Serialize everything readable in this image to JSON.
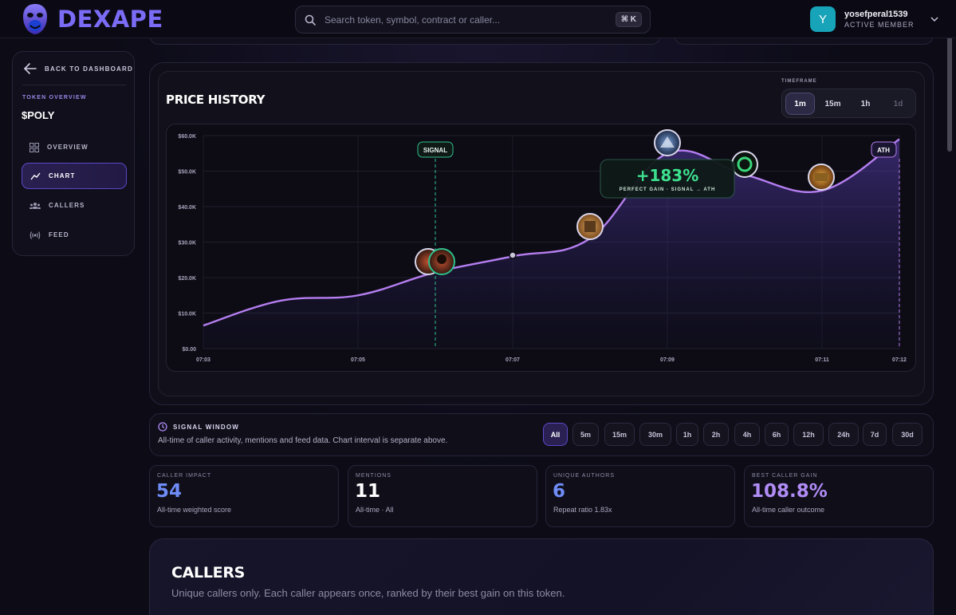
{
  "header": {
    "brand": "DEXAPE",
    "search_placeholder": "Search token, symbol, contract or caller...",
    "shortcut": "⌘ K",
    "user": {
      "initial": "Y",
      "name": "yosefperal1539",
      "role": "ACTIVE MEMBER"
    }
  },
  "sidebar": {
    "back_label": "BACK TO DASHBOARD",
    "section_label": "TOKEN OVERVIEW",
    "token": "$POLY",
    "items": [
      {
        "label": "OVERVIEW",
        "icon": "grid-icon",
        "active": false
      },
      {
        "label": "CHART",
        "icon": "trend-icon",
        "active": true
      },
      {
        "label": "CALLERS",
        "icon": "users-icon",
        "active": false
      },
      {
        "label": "FEED",
        "icon": "broadcast-icon",
        "active": false
      }
    ]
  },
  "chart_panel": {
    "title": "PRICE HISTORY",
    "timeframe_label": "TIMEFRAME",
    "timeframes": [
      {
        "label": "1m",
        "active": true,
        "enabled": true
      },
      {
        "label": "15m",
        "active": false,
        "enabled": true
      },
      {
        "label": "1h",
        "active": false,
        "enabled": true
      },
      {
        "label": "1d",
        "active": false,
        "enabled": false
      }
    ]
  },
  "chart_data": {
    "type": "line",
    "x": [
      "07:03",
      "07:04",
      "07:05",
      "07:06",
      "07:07",
      "07:08",
      "07:09",
      "07:10",
      "07:11",
      "07:12"
    ],
    "xticks": [
      "07:03",
      "07:05",
      "07:07",
      "07:09",
      "07:11",
      "07:12"
    ],
    "yticks": [
      "$0.00",
      "$10.0K",
      "$20.0K",
      "$30.0K",
      "$40.0K",
      "$50.0K",
      "$60.0K"
    ],
    "ylim": [
      0,
      60000
    ],
    "series": [
      {
        "values": [
          6500,
          13500,
          15000,
          21500,
          26000,
          31000,
          55000,
          49000,
          44500,
          59000
        ]
      }
    ],
    "color": "#b57ef0",
    "annotations": {
      "signal_label": "SIGNAL",
      "ath_label": "ATH",
      "gain_value": "+183%",
      "gain_caption": "PERFECT GAIN · SIGNAL → ATH"
    }
  },
  "signal_window": {
    "title": "SIGNAL WINDOW",
    "description": "All-time of caller activity, mentions and feed data. Chart interval is separate above.",
    "options": [
      {
        "label": "All",
        "active": true
      },
      {
        "label": "5m",
        "active": false
      },
      {
        "label": "15m",
        "active": false
      },
      {
        "label": "30m",
        "active": false
      },
      {
        "label": "1h",
        "active": false
      },
      {
        "label": "2h",
        "active": false
      },
      {
        "label": "4h",
        "active": false
      },
      {
        "label": "6h",
        "active": false
      },
      {
        "label": "12h",
        "active": false
      },
      {
        "label": "24h",
        "active": false
      },
      {
        "label": "7d",
        "active": false
      },
      {
        "label": "30d",
        "active": false
      }
    ]
  },
  "stats": [
    {
      "label": "CALLER IMPACT",
      "value": "54",
      "sub": "All-time weighted score",
      "color": "#6f8cf7"
    },
    {
      "label": "MENTIONS",
      "value": "11",
      "sub": "All-time · All",
      "color": "#ffffff"
    },
    {
      "label": "UNIQUE AUTHORS",
      "value": "6",
      "sub": "Repeat ratio 1.83x",
      "color": "#6f8cf7"
    },
    {
      "label": "BEST CALLER GAIN",
      "value": "108.8%",
      "sub": "All-time caller outcome",
      "color": "#b08cf5"
    }
  ],
  "callers": {
    "title": "CALLERS",
    "subtitle": "Unique callers only. Each caller appears once, ranked by their best gain on this token."
  }
}
